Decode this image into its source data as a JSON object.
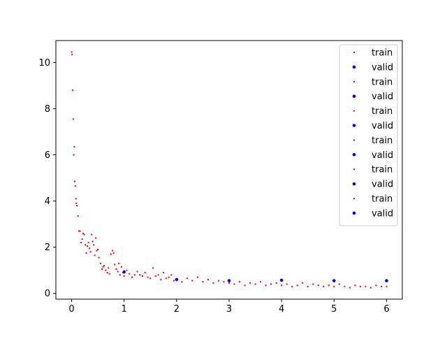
{
  "chart_data": {
    "type": "scatter",
    "title": "",
    "xlabel": "",
    "ylabel": "",
    "xlim": [
      -0.3,
      6.3
    ],
    "ylim": [
      -0.25,
      10.95
    ],
    "xticks": [
      0,
      1,
      2,
      3,
      4,
      5,
      6
    ],
    "yticks": [
      0,
      2,
      4,
      6,
      8,
      10
    ],
    "grid": false,
    "legend_position": "upper right",
    "legend": [
      {
        "label": "train",
        "color": "#ff0000",
        "marker": "small-square"
      },
      {
        "label": "valid",
        "color": "#0000ff",
        "marker": "circle"
      },
      {
        "label": "train",
        "color": "#ff0000",
        "marker": "small-square"
      },
      {
        "label": "valid",
        "color": "#0000ff",
        "marker": "circle"
      },
      {
        "label": "train",
        "color": "#ff0000",
        "marker": "small-square"
      },
      {
        "label": "valid",
        "color": "#0000ff",
        "marker": "circle"
      },
      {
        "label": "train",
        "color": "#ff0000",
        "marker": "small-square"
      },
      {
        "label": "valid",
        "color": "#0000ff",
        "marker": "circle"
      },
      {
        "label": "train",
        "color": "#ff0000",
        "marker": "small-square"
      },
      {
        "label": "valid",
        "color": "#0000ff",
        "marker": "circle"
      },
      {
        "label": "train",
        "color": "#ff0000",
        "marker": "small-square"
      },
      {
        "label": "valid",
        "color": "#0000ff",
        "marker": "circle"
      }
    ],
    "series": [
      {
        "name": "train",
        "color": "#ff0000",
        "x": [
          0.0,
          0.01,
          0.02,
          0.03,
          0.04,
          0.05,
          0.06,
          0.07,
          0.08,
          0.09,
          0.1,
          0.12,
          0.14,
          0.16,
          0.18,
          0.2,
          0.22,
          0.24,
          0.26,
          0.28,
          0.3,
          0.32,
          0.34,
          0.36,
          0.38,
          0.4,
          0.42,
          0.44,
          0.46,
          0.48,
          0.5,
          0.52,
          0.55,
          0.58,
          0.6,
          0.62,
          0.65,
          0.68,
          0.7,
          0.72,
          0.75,
          0.78,
          0.8,
          0.82,
          0.85,
          0.88,
          0.9,
          0.92,
          0.95,
          0.98,
          1.0,
          1.05,
          1.1,
          1.15,
          1.2,
          1.25,
          1.3,
          1.35,
          1.4,
          1.45,
          1.5,
          1.55,
          1.6,
          1.65,
          1.7,
          1.75,
          1.8,
          1.85,
          1.9,
          1.95,
          2.0,
          2.1,
          2.2,
          2.3,
          2.4,
          2.5,
          2.6,
          2.7,
          2.8,
          2.9,
          3.0,
          3.1,
          3.2,
          3.3,
          3.4,
          3.5,
          3.6,
          3.7,
          3.8,
          3.9,
          4.0,
          4.1,
          4.2,
          4.3,
          4.4,
          4.5,
          4.6,
          4.7,
          4.8,
          4.9,
          5.0,
          5.1,
          5.2,
          5.3,
          5.4,
          5.5,
          5.6,
          5.7,
          5.8,
          5.9,
          6.0
        ],
        "y": [
          10.45,
          10.35,
          8.8,
          7.55,
          6.0,
          6.35,
          4.85,
          4.65,
          4.1,
          3.9,
          3.8,
          3.35,
          2.7,
          2.7,
          2.2,
          2.35,
          2.6,
          2.55,
          2.1,
          1.75,
          2.05,
          2.2,
          1.95,
          1.8,
          2.55,
          2.25,
          2.1,
          1.65,
          2.4,
          1.85,
          1.9,
          1.55,
          1.3,
          1.05,
          1.15,
          1.2,
          1.0,
          0.9,
          1.1,
          0.85,
          1.7,
          1.85,
          1.75,
          1.25,
          1.05,
          0.95,
          1.3,
          0.8,
          1.15,
          0.9,
          0.75,
          1.0,
          0.85,
          0.7,
          0.8,
          0.95,
          0.8,
          0.75,
          0.9,
          0.7,
          0.65,
          1.1,
          0.75,
          0.8,
          0.6,
          0.9,
          0.65,
          0.7,
          0.8,
          0.55,
          0.6,
          0.5,
          0.65,
          0.55,
          0.7,
          0.5,
          0.6,
          0.45,
          0.55,
          0.5,
          0.45,
          0.4,
          0.5,
          0.35,
          0.45,
          0.4,
          0.5,
          0.35,
          0.4,
          0.45,
          0.35,
          0.4,
          0.3,
          0.35,
          0.45,
          0.3,
          0.4,
          0.35,
          0.3,
          0.35,
          0.3,
          0.4,
          0.3,
          0.25,
          0.35,
          0.3,
          0.3,
          0.25,
          0.35,
          0.3,
          0.3
        ]
      },
      {
        "name": "valid",
        "color": "#0000ff",
        "x": [
          1,
          2,
          3,
          4,
          5,
          6
        ],
        "y": [
          0.93,
          0.6,
          0.55,
          0.57,
          0.55,
          0.55
        ]
      }
    ]
  }
}
